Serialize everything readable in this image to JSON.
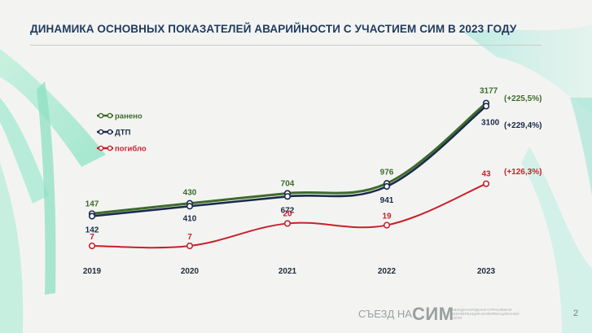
{
  "slide": {
    "title": "ДИНАМИКА ОСНОВНЫХ ПОКАЗАТЕЛЕЙ АВАРИЙНОСТИ С УЧАСТИЕМ СИМ В 2023 ГОДУ",
    "footer_prefix": "СЪЕЗД НА",
    "footer_brand": "СИМ",
    "footer_sub": "МЕЖДУНАРОДНАЯ ОТРАСЛЕВАЯ КОНФЕРЕНЦИЯ ИНФОРМАЦИОННОЙ СЕТИ",
    "page_number": "2"
  },
  "chart_data": {
    "type": "line",
    "title": "",
    "xlabel": "",
    "ylabel": "",
    "grid": false,
    "legend_position": "top-left",
    "categories": [
      "2019",
      "2020",
      "2021",
      "2022",
      "2023"
    ],
    "ylim": [
      0,
      3400
    ],
    "series": [
      {
        "key": "injured",
        "name": "ранено",
        "color": "#3d6b2a",
        "values": [
          147,
          430,
          704,
          976,
          3177
        ],
        "labels": [
          "147",
          "430",
          "704",
          "976",
          "3177"
        ],
        "change": "(+225,5%)"
      },
      {
        "key": "accidents",
        "name": "ДТП",
        "color": "#1b2a4a",
        "values": [
          142,
          410,
          672,
          941,
          3100
        ],
        "labels": [
          "142",
          "410",
          "672",
          "941",
          "3100"
        ],
        "change": "(+229,4%)"
      },
      {
        "key": "killed",
        "name": "погибло",
        "color": "#c8202a",
        "values": [
          7,
          7,
          20,
          19,
          43
        ],
        "labels": [
          "7",
          "7",
          "20",
          "19",
          "43"
        ],
        "change": "(+126,3%)"
      }
    ]
  }
}
